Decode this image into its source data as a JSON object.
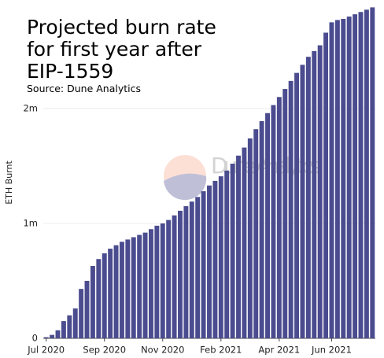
{
  "chart_data": {
    "type": "bar",
    "title": "Projected burn rate for first year after EIP-1559",
    "subtitle": "Source: Dune Analytics",
    "y_label": "ETH Burnt",
    "watermark": "Dune Analytics",
    "categories": [
      "Jul 2020",
      null,
      null,
      null,
      null,
      null,
      null,
      null,
      null,
      null,
      "Sep 2020",
      null,
      null,
      null,
      null,
      null,
      null,
      null,
      null,
      null,
      "Nov 2020",
      null,
      null,
      null,
      null,
      null,
      null,
      null,
      null,
      null,
      "Feb 2021",
      null,
      null,
      null,
      null,
      null,
      null,
      null,
      null,
      null,
      "Apr 2021",
      null,
      null,
      null,
      null,
      null,
      null,
      null,
      null,
      "Jun 2021",
      null,
      null,
      null,
      null,
      null,
      null,
      null
    ],
    "values": [
      10000,
      30000,
      70000,
      150000,
      200000,
      260000,
      430000,
      500000,
      630000,
      690000,
      740000,
      780000,
      810000,
      840000,
      860000,
      880000,
      900000,
      920000,
      950000,
      980000,
      1000000,
      1030000,
      1070000,
      1110000,
      1150000,
      1190000,
      1230000,
      1280000,
      1330000,
      1370000,
      1410000,
      1460000,
      1520000,
      1590000,
      1660000,
      1740000,
      1820000,
      1890000,
      1960000,
      2030000,
      2100000,
      2170000,
      2240000,
      2310000,
      2380000,
      2450000,
      2500000,
      2550000,
      2660000,
      2750000,
      2770000,
      2780000,
      2800000,
      2820000,
      2840000,
      2860000,
      2880000
    ],
    "color": "#4b4c8f",
    "ylim": [
      0,
      2910000
    ],
    "yticks": [
      0,
      {
        "value": 1000000,
        "label": "1m"
      },
      {
        "value": 2000000,
        "label": "2m"
      }
    ],
    "grid": true
  }
}
